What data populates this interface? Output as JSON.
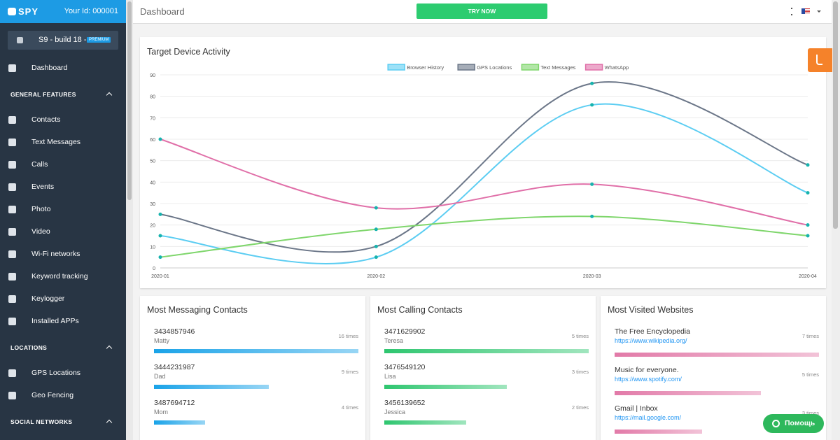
{
  "sidebar": {
    "logo": "SPY",
    "user_id": "Your Id: 000001",
    "device": "S9 - build 18 -...",
    "badge": "PREMIUM",
    "nav": [
      {
        "label": "Dashboard"
      },
      {
        "heading": "GENERAL FEATURES"
      },
      {
        "label": "Contacts"
      },
      {
        "label": "Text Messages"
      },
      {
        "label": "Calls"
      },
      {
        "label": "Events"
      },
      {
        "label": "Photo"
      },
      {
        "label": "Video"
      },
      {
        "label": "Wi-Fi networks"
      },
      {
        "label": "Keyword tracking"
      },
      {
        "label": "Keylogger"
      },
      {
        "label": "Installed APPs"
      },
      {
        "heading": "LOCATIONS"
      },
      {
        "label": "GPS Locations"
      },
      {
        "label": "Geo Fencing"
      },
      {
        "heading": "SOCIAL NETWORKS"
      }
    ]
  },
  "header": {
    "title": "Dashboard",
    "button": "TRY NOW"
  },
  "chart_data": {
    "type": "line",
    "title": "Target Device Activity",
    "categories": [
      "2020-01",
      "2020-02",
      "2020-03",
      "2020-04"
    ],
    "series": [
      {
        "name": "Browser History",
        "color": "#5ccdf2",
        "values": [
          15,
          5,
          76,
          35
        ]
      },
      {
        "name": "GPS Locations",
        "color": "#6b7688",
        "values": [
          25,
          10,
          86,
          48
        ]
      },
      {
        "name": "Text Messages",
        "color": "#7fd66c",
        "values": [
          5,
          18,
          24,
          15
        ]
      },
      {
        "name": "WhatsApp",
        "color": "#e06fa8",
        "values": [
          60,
          28,
          39,
          20
        ]
      }
    ],
    "point_color": "#17b3ae",
    "ylim": [
      0,
      90
    ],
    "yticks": [
      0,
      10,
      20,
      30,
      40,
      50,
      60,
      70,
      80,
      90
    ],
    "grid": true
  },
  "cards": [
    {
      "title": "Most Messaging Contacts",
      "color": "#1aa3e8",
      "rows": [
        {
          "primary": "3434857946",
          "secondary": "Matty"
        },
        {
          "primary": "3444231987",
          "secondary": "Dad"
        },
        {
          "primary": "3487694712",
          "secondary": "Mom"
        }
      ],
      "values": [
        16,
        9,
        4
      ],
      "value_labels": [
        "16 times",
        "9 times",
        "4 times"
      ]
    },
    {
      "title": "Most Calling Contacts",
      "color": "#2ec66f",
      "rows": [
        {
          "primary": "3471629902",
          "secondary": "Teresa"
        },
        {
          "primary": "3476549120",
          "secondary": "Lisa"
        },
        {
          "primary": "3456139652",
          "secondary": "Jessica"
        }
      ],
      "values": [
        5,
        3,
        2
      ],
      "value_labels": [
        "5 times",
        "3 times",
        "2 times"
      ]
    },
    {
      "title": "Most Visited Websites",
      "color": "#e27aa8",
      "rows": [
        {
          "primary": "The Free Encyclopedia",
          "link": "https://www.wikipedia.org/"
        },
        {
          "primary": "Music for everyone.",
          "link": "https://www.spotify.com/"
        },
        {
          "primary": "Gmail | Inbox",
          "link": "https://mail.google.com/"
        }
      ],
      "values": [
        7,
        5,
        3
      ],
      "value_labels": [
        "7 times",
        "5 times",
        "3 times"
      ]
    }
  ],
  "help": "Помощь"
}
